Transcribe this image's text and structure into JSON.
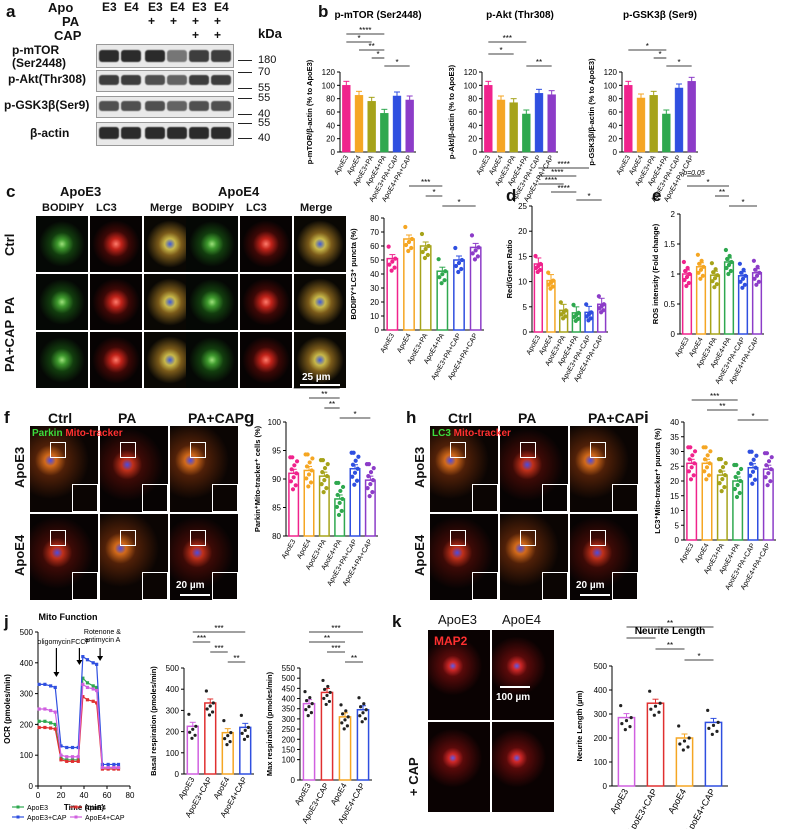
{
  "panel_labels": {
    "a": "a",
    "b": "b",
    "c": "c",
    "d": "d",
    "e": "e",
    "f": "f",
    "g": "g",
    "h": "h",
    "i": "i",
    "j": "j",
    "k": "k"
  },
  "western": {
    "row_labels": [
      "Apo",
      "PA",
      "CAP"
    ],
    "lanes": {
      "apo": [
        "E3",
        "E4",
        "E3",
        "E4",
        "E3",
        "E4"
      ],
      "pa": [
        "",
        "",
        "+",
        "+",
        "+",
        "+"
      ],
      "cap": [
        "",
        "",
        "",
        "",
        "+",
        "+"
      ]
    },
    "proteins": [
      "p-mTOR\n(Ser2448)",
      "p-Akt(Thr308)",
      "p-GSK3β(Ser9)",
      "β-actin"
    ],
    "kda_label": "kDa",
    "markers": [
      "180",
      "70",
      "55",
      "55",
      "40",
      "55",
      "40"
    ]
  },
  "microscopy": {
    "c": {
      "group1": "ApoE3",
      "group2": "ApoE4",
      "cols": [
        "BODIPY",
        "LC3",
        "Merge"
      ],
      "rows": [
        "Ctrl",
        "PA",
        "PA+CAP"
      ],
      "scale": "25 µm"
    },
    "f": {
      "cols": [
        "Ctrl",
        "PA",
        "PA+CAP"
      ],
      "rows": [
        "ApoE3",
        "ApoE4"
      ],
      "stain1": "Parkin",
      "stain2": "Mito-tracker",
      "scale": "20 µm"
    },
    "h": {
      "cols": [
        "Ctrl",
        "PA",
        "PA+CAP"
      ],
      "rows": [
        "ApoE3",
        "ApoE4"
      ],
      "stain1": "LC3",
      "stain2": "Mito-tracker",
      "scale": "20 µm"
    },
    "k": {
      "cols": [
        "ApoE3",
        "ApoE4"
      ],
      "rows": [
        "",
        "+ CAP"
      ],
      "stain": "MAP2",
      "scale": "100 µm"
    }
  },
  "seahorse": {
    "title": "Mito Function",
    "annotations": [
      "oligomycin",
      "FCCP",
      "Rotenone &\nantimycin A"
    ],
    "ylabel": "OCR (pmoles/min)",
    "xlabel": "Time (min)",
    "legend": [
      "ApoE3",
      "ApoE4",
      "ApoE3+CAP",
      "ApoE4+CAP"
    ]
  },
  "colors": {
    "pink": "#f0238c",
    "orange": "#f5a623",
    "olive": "#a6a31a",
    "green": "#2fa84f",
    "blue": "#2f4fe0",
    "purple": "#8c3cc8",
    "red": "#e03030",
    "magenta": "#d060e0"
  },
  "chart_data": [
    {
      "panel": "b",
      "type": "bar",
      "title": "p-mTOR (Ser2448)",
      "ylabel": "p-mTOR/β-actin (% to ApoE3)",
      "categories": [
        "ApoE3",
        "ApoE4",
        "ApoE3+PA",
        "ApoE4+PA",
        "ApoE3+PA+CAP",
        "ApoE4+PA+CAP"
      ],
      "values": [
        100,
        85,
        76,
        58,
        84,
        78
      ],
      "ylim": [
        0,
        120
      ],
      "yticks": [
        0,
        20,
        40,
        60,
        80,
        100,
        120
      ],
      "sig": [
        {
          "x1": 0,
          "x2": 3,
          "label": "****"
        },
        {
          "x1": 0,
          "x2": 2,
          "label": "*"
        },
        {
          "x1": 1,
          "x2": 3,
          "label": "**"
        },
        {
          "x1": 2,
          "x2": 3,
          "label": "*"
        },
        {
          "x1": 3,
          "x2": 5,
          "label": "*"
        }
      ]
    },
    {
      "panel": "b",
      "type": "bar",
      "title": "p-Akt (Thr308)",
      "ylabel": "p-Akt/β-actin (% to ApoE3)",
      "categories": [
        "ApoE3",
        "ApoE4",
        "ApoE3+PA",
        "ApoE4+PA",
        "ApoE3+PA+CAP",
        "ApoE4+PA+CAP"
      ],
      "values": [
        100,
        78,
        74,
        57,
        88,
        86
      ],
      "ylim": [
        0,
        120
      ],
      "yticks": [
        0,
        20,
        40,
        60,
        80,
        100,
        120
      ],
      "sig": [
        {
          "x1": 0,
          "x2": 3,
          "label": "***"
        },
        {
          "x1": 0,
          "x2": 2,
          "label": "*"
        },
        {
          "x1": 3,
          "x2": 5,
          "label": "**"
        }
      ]
    },
    {
      "panel": "b",
      "type": "bar",
      "title": "p-GSK3β (Ser9)",
      "ylabel": "p-GSK3β/β-actin (% to ApoE3)",
      "categories": [
        "ApoE3",
        "ApoE4",
        "ApoE3+PA",
        "ApoE4+PA",
        "ApoE3+PA+CAP",
        "ApoE4+PA+CAP"
      ],
      "values": [
        100,
        81,
        85,
        57,
        96,
        106
      ],
      "ylim": [
        0,
        120
      ],
      "yticks": [
        0,
        20,
        40,
        60,
        80,
        100,
        120
      ],
      "sig": [
        {
          "x1": 0,
          "x2": 3,
          "label": "*"
        },
        {
          "x1": 2,
          "x2": 3,
          "label": "*"
        },
        {
          "x1": 3,
          "x2": 5,
          "label": "*"
        }
      ]
    },
    {
      "panel": "c",
      "type": "bar",
      "title": "",
      "ylabel": "BODIPY⁺LC3⁺ puncta (%)",
      "categories": [
        "ApoE3",
        "ApoE4",
        "ApoE3+PA",
        "ApoE4+PA",
        "ApoE3+PA+CAP",
        "ApoE4+PA+CAP"
      ],
      "values": [
        51,
        65,
        60,
        42,
        50,
        59
      ],
      "ylim": [
        0,
        80
      ],
      "yticks": [
        0,
        10,
        20,
        30,
        40,
        50,
        60,
        70,
        80
      ],
      "sig": [
        {
          "x1": 1,
          "x2": 3,
          "label": "***"
        },
        {
          "x1": 2,
          "x2": 3,
          "label": "*"
        },
        {
          "x1": 3,
          "x2": 5,
          "label": "*"
        }
      ]
    },
    {
      "panel": "d",
      "type": "bar",
      "title": "",
      "ylabel": "Red/Green Ratio",
      "categories": [
        "ApoE3",
        "ApoE4",
        "ApoE3+PA",
        "ApoE4+PA",
        "ApoE3+PA+CAP",
        "ApoE4+PA+CAP"
      ],
      "values": [
        13.5,
        10.2,
        4.3,
        3.8,
        3.9,
        5.5
      ],
      "ylim": [
        0,
        25
      ],
      "yticks": [
        0,
        5,
        10,
        15,
        20,
        25
      ],
      "sig": [
        {
          "x1": 0,
          "x2": 4,
          "label": "****"
        },
        {
          "x1": 0,
          "x2": 3,
          "label": "****"
        },
        {
          "x1": 0,
          "x2": 2,
          "label": "****"
        },
        {
          "x1": 1,
          "x2": 3,
          "label": "****"
        },
        {
          "x1": 3,
          "x2": 5,
          "label": "*"
        }
      ]
    },
    {
      "panel": "e",
      "type": "bar",
      "title": "",
      "ylabel": "ROS intensity (Fold change)",
      "categories": [
        "ApoE3",
        "ApoE4",
        "ApoE3+PA",
        "ApoE4+PA",
        "ApoE3+PA+CAP",
        "ApoE4+PA+CAP"
      ],
      "values": [
        1.0,
        1.12,
        0.98,
        1.2,
        0.97,
        1.02
      ],
      "ylim": [
        0,
        2.0
      ],
      "yticks": [
        0,
        0.5,
        1.0,
        1.5,
        2.0
      ],
      "sig": [
        {
          "x1": 0,
          "x2": 1,
          "label": "p=0.05"
        },
        {
          "x1": 0,
          "x2": 3,
          "label": "*"
        },
        {
          "x1": 2,
          "x2": 3,
          "label": "**"
        },
        {
          "x1": 3,
          "x2": 5,
          "label": "*"
        }
      ]
    },
    {
      "panel": "g",
      "type": "bar",
      "title": "",
      "ylabel": "Parkin⁺Mito-tracker⁺ cells (%)",
      "categories": [
        "ApoE3",
        "ApoE4",
        "ApoE3+PA",
        "ApoE4+PA",
        "ApoE3+PA+CAP",
        "ApoE4+PA+CAP"
      ],
      "values": [
        91,
        91.5,
        90.5,
        86.5,
        91.8,
        89.8
      ],
      "ylim": [
        80,
        100
      ],
      "yticks": [
        80,
        85,
        90,
        95,
        100
      ],
      "sig": [
        {
          "x1": 0,
          "x2": 3,
          "label": "**"
        },
        {
          "x1": 1,
          "x2": 3,
          "label": "**"
        },
        {
          "x1": 2,
          "x2": 3,
          "label": "**"
        },
        {
          "x1": 3,
          "x2": 5,
          "label": "*"
        }
      ]
    },
    {
      "panel": "i",
      "type": "bar",
      "title": "",
      "ylabel": "LC3⁺Mito-tracker⁺ puncta (%)",
      "categories": [
        "ApoE3",
        "ApoE4",
        "ApoE3+PA",
        "ApoE4+PA",
        "ApoE3+PA+CAP",
        "ApoE4+PA+CAP"
      ],
      "values": [
        26,
        26,
        22,
        20,
        24.5,
        24
      ],
      "ylim": [
        0,
        40
      ],
      "yticks": [
        0,
        5,
        10,
        15,
        20,
        25,
        30,
        35,
        40
      ],
      "sig": [
        {
          "x1": 0,
          "x2": 3,
          "label": "***"
        },
        {
          "x1": 1,
          "x2": 3,
          "label": "**"
        },
        {
          "x1": 3,
          "x2": 5,
          "label": "*"
        }
      ]
    },
    {
      "panel": "j",
      "type": "line",
      "title": "Mito Function",
      "xlabel": "Time (min)",
      "ylabel": "OCR (pmoles/min)",
      "xlim": [
        0,
        80
      ],
      "ylim": [
        0,
        500
      ],
      "xticks": [
        0,
        20,
        40,
        60,
        80
      ],
      "yticks": [
        0,
        100,
        200,
        300,
        400,
        500
      ],
      "x": [
        1,
        6,
        11,
        15,
        20,
        25,
        30,
        35,
        39,
        43,
        48,
        51,
        56,
        61,
        66,
        70
      ],
      "series": [
        {
          "name": "ApoE3",
          "values": [
            210,
            210,
            205,
            200,
            90,
            85,
            85,
            85,
            350,
            335,
            325,
            320,
            60,
            60,
            60,
            60
          ]
        },
        {
          "name": "ApoE4",
          "values": [
            190,
            190,
            188,
            185,
            85,
            80,
            80,
            80,
            290,
            280,
            275,
            270,
            55,
            55,
            55,
            55
          ]
        },
        {
          "name": "ApoE3+CAP",
          "values": [
            330,
            330,
            325,
            320,
            130,
            125,
            125,
            125,
            420,
            410,
            400,
            395,
            70,
            70,
            70,
            70
          ]
        },
        {
          "name": "ApoE4+CAP",
          "values": [
            250,
            250,
            245,
            240,
            100,
            95,
            95,
            95,
            330,
            320,
            315,
            310,
            60,
            60,
            60,
            60
          ]
        }
      ]
    },
    {
      "panel": "j2",
      "type": "bar",
      "title": "",
      "ylabel": "Basal respiration (pmoles/min)",
      "categories": [
        "ApoE3",
        "ApoE3+CAP",
        "ApoE4",
        "ApoE4+CAP"
      ],
      "values": [
        225,
        335,
        195,
        220
      ],
      "ylim": [
        0,
        500
      ],
      "yticks": [
        0,
        100,
        200,
        300,
        400,
        500
      ],
      "sig": [
        {
          "x1": 0,
          "x2": 3,
          "label": "***"
        },
        {
          "x1": 0,
          "x2": 1,
          "label": "***"
        },
        {
          "x1": 1,
          "x2": 2,
          "label": "***"
        },
        {
          "x1": 2,
          "x2": 3,
          "label": "**"
        }
      ]
    },
    {
      "panel": "j3",
      "type": "bar",
      "title": "",
      "ylabel": "Max respiration (pmoles/min)",
      "categories": [
        "ApoE3",
        "ApoE3+CAP",
        "ApoE4",
        "ApoE4+CAP"
      ],
      "values": [
        375,
        430,
        310,
        345
      ],
      "ylim": [
        0,
        550
      ],
      "yticks": [
        0,
        100,
        150,
        200,
        250,
        300,
        350,
        400,
        450,
        500,
        550
      ],
      "sig": [
        {
          "x1": 0,
          "x2": 3,
          "label": "***"
        },
        {
          "x1": 0,
          "x2": 2,
          "label": "**"
        },
        {
          "x1": 1,
          "x2": 2,
          "label": "***"
        },
        {
          "x1": 2,
          "x2": 3,
          "label": "**"
        }
      ]
    },
    {
      "panel": "k",
      "type": "bar",
      "title": "Neurite Length",
      "ylabel": "Neurite Length (µm)",
      "categories": [
        "ApoE3",
        "ApoE3+CAP",
        "ApoE4",
        "ApoE4+CAP"
      ],
      "values": [
        285,
        345,
        200,
        265
      ],
      "ylim": [
        0,
        500
      ],
      "yticks": [
        0,
        100,
        200,
        300,
        400,
        500
      ],
      "sig": [
        {
          "x1": 0,
          "x2": 3,
          "label": "**"
        },
        {
          "x1": 0,
          "x2": 1,
          "label": "*"
        },
        {
          "x1": 1,
          "x2": 2,
          "label": "**"
        },
        {
          "x1": 2,
          "x2": 3,
          "label": "*"
        }
      ]
    }
  ]
}
